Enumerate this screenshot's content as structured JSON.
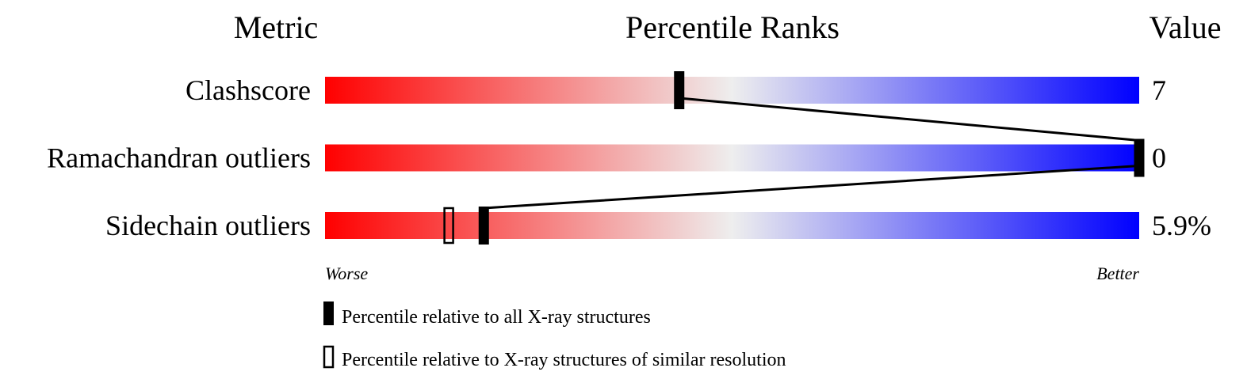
{
  "headers": {
    "metric": "Metric",
    "percentile": "Percentile Ranks",
    "value": "Value"
  },
  "axis": {
    "worse": "Worse",
    "better": "Better"
  },
  "legend": {
    "all": "Percentile relative to all X-ray structures",
    "similar": "Percentile relative to X-ray structures of similar resolution"
  },
  "colors": {
    "worse": "#ff0000",
    "middle": "#eeeeee",
    "better": "#0000ff",
    "marker": "#000000"
  },
  "chart_data": {
    "type": "bar",
    "x_range": [
      0,
      100
    ],
    "metrics": [
      {
        "label": "Clashscore",
        "value": "7",
        "percentile_all": 43.5,
        "percentile_similar": null
      },
      {
        "label": "Ramachandran outliers",
        "value": "0",
        "percentile_all": 100,
        "percentile_similar": null
      },
      {
        "label": "Sidechain outliers",
        "value": "5.9%",
        "percentile_all": 19.5,
        "percentile_similar": 15.2
      }
    ]
  }
}
